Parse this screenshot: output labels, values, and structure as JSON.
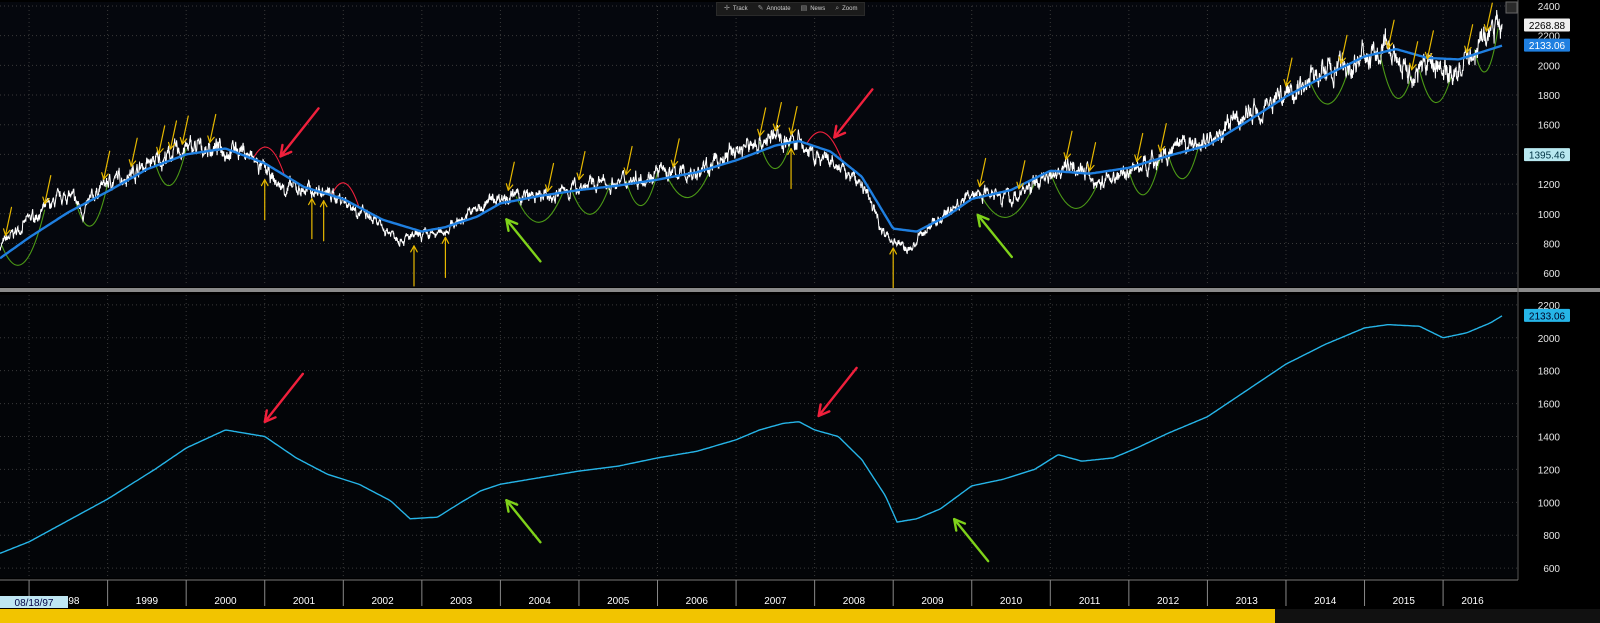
{
  "toolbar": {
    "items": [
      {
        "label": "Track",
        "icon": "crosshair-icon"
      },
      {
        "label": "Annotate",
        "icon": "pencil-icon"
      },
      {
        "label": "News",
        "icon": "news-icon"
      },
      {
        "label": "Zoom",
        "icon": "zoom-icon"
      }
    ]
  },
  "colors": {
    "background": "#000000",
    "price": "#ffffff",
    "ma_top": "#1f7fe0",
    "ma_bottom": "#26b5e8",
    "yellow_arrow": "#e6b800",
    "green_arc": "#4c9a16",
    "red_arrow": "#f0203c",
    "green_arrow": "#7fd21a",
    "divider": "#8a8a8a",
    "time_bar": "#f2c400"
  },
  "chart_data": [
    {
      "type": "line",
      "panel": "top",
      "ylim": [
        520,
        2400
      ],
      "yticks": [
        600,
        800,
        1000,
        1200,
        1400,
        1600,
        1800,
        2000,
        2200,
        2400
      ],
      "series": [
        {
          "values_ref": "price",
          "x": [
            1997.63,
            1998.0,
            1998.5,
            1998.7,
            1998.9,
            1999.5,
            2000.0,
            2000.7,
            2001.2,
            2001.7,
            2002.0,
            2002.5,
            2002.8,
            2003.2,
            2003.6,
            2004.0,
            2004.6,
            2005.0,
            2005.5,
            2006.0,
            2006.5,
            2007.0,
            2007.5,
            2007.8,
            2008.0,
            2008.3,
            2008.6,
            2008.9,
            2009.2,
            2009.5,
            2009.8,
            2010.0,
            2010.3,
            2010.5,
            2011.0,
            2011.3,
            2011.6,
            2011.8,
            2012.0,
            2012.5,
            2013.0,
            2013.5,
            2014.0,
            2014.5,
            2014.8,
            2015.0,
            2015.4,
            2015.6,
            2015.9,
            2016.1,
            2016.5,
            2016.75
          ],
          "values": [
            780,
            960,
            1130,
            1010,
            1180,
            1330,
            1440,
            1440,
            1180,
            1150,
            1100,
            900,
            830,
            860,
            1000,
            1120,
            1110,
            1190,
            1210,
            1280,
            1270,
            1430,
            1520,
            1480,
            1380,
            1310,
            1200,
            860,
            750,
            940,
            1050,
            1130,
            1170,
            1090,
            1280,
            1350,
            1200,
            1250,
            1290,
            1400,
            1500,
            1660,
            1820,
            1960,
            1980,
            2060,
            2080,
            1930,
            2040,
            1920,
            2170,
            2270
          ]
        },
        {
          "values_ref": "ma",
          "x": [
            1997.63,
            1998.0,
            1998.5,
            1999.0,
            1999.5,
            2000.0,
            2000.5,
            2001.0,
            2001.5,
            2002.0,
            2002.5,
            2003.0,
            2003.3,
            2003.7,
            2004.0,
            2004.5,
            2005.0,
            2005.5,
            2006.0,
            2006.5,
            2007.0,
            2007.5,
            2007.8,
            2008.2,
            2008.6,
            2009.0,
            2009.3,
            2009.7,
            2010.0,
            2010.5,
            2011.0,
            2011.5,
            2012.0,
            2012.5,
            2013.0,
            2013.5,
            2014.0,
            2014.5,
            2015.0,
            2015.4,
            2015.8,
            2016.2,
            2016.75
          ],
          "values": [
            700,
            840,
            1010,
            1150,
            1300,
            1400,
            1440,
            1340,
            1180,
            1100,
            960,
            880,
            910,
            980,
            1070,
            1120,
            1160,
            1190,
            1230,
            1280,
            1360,
            1460,
            1490,
            1420,
            1250,
            900,
            880,
            990,
            1100,
            1160,
            1290,
            1270,
            1310,
            1390,
            1460,
            1620,
            1790,
            1930,
            2060,
            2110,
            2050,
            2040,
            2133.06
          ]
        }
      ],
      "labels": [
        "2268.88",
        "2133.06",
        "1395.46"
      ]
    },
    {
      "type": "line",
      "panel": "bottom",
      "ylim": [
        540,
        2260
      ],
      "yticks": [
        600,
        800,
        1000,
        1200,
        1400,
        1600,
        1800,
        2000,
        2200
      ],
      "series": [
        {
          "values_ref": "ma",
          "x": [
            1997.63,
            1998.0,
            1998.5,
            1999.0,
            1999.3,
            1999.6,
            2000.0,
            2000.5,
            2001.0,
            2001.4,
            2001.8,
            2002.2,
            2002.6,
            2002.85,
            2003.2,
            2003.5,
            2003.75,
            2004.0,
            2004.5,
            2005.0,
            2005.5,
            2006.0,
            2006.5,
            2007.0,
            2007.3,
            2007.6,
            2007.8,
            2008.0,
            2008.3,
            2008.6,
            2008.9,
            2009.05,
            2009.3,
            2009.6,
            2010.0,
            2010.4,
            2010.8,
            2011.1,
            2011.4,
            2011.8,
            2012.1,
            2012.5,
            2013.0,
            2013.5,
            2014.0,
            2014.5,
            2015.0,
            2015.3,
            2015.7,
            2016.0,
            2016.3,
            2016.6,
            2016.75
          ],
          "values": [
            690,
            760,
            890,
            1020,
            1110,
            1200,
            1330,
            1440,
            1400,
            1270,
            1170,
            1110,
            1010,
            900,
            910,
            1000,
            1070,
            1110,
            1150,
            1190,
            1220,
            1270,
            1310,
            1380,
            1440,
            1480,
            1490,
            1440,
            1400,
            1260,
            1040,
            880,
            900,
            960,
            1100,
            1140,
            1200,
            1290,
            1250,
            1270,
            1330,
            1420,
            1520,
            1680,
            1840,
            1960,
            2060,
            2080,
            2070,
            2000,
            2030,
            2090,
            2133.06
          ]
        }
      ],
      "labels": [
        "2133.06"
      ]
    }
  ],
  "xaxis": {
    "ticks": [
      "1998",
      "1999",
      "2000",
      "2001",
      "2002",
      "2003",
      "2004",
      "2005",
      "2006",
      "2007",
      "2008",
      "2009",
      "2010",
      "2011",
      "2012",
      "2013",
      "2014",
      "2015",
      "2016"
    ],
    "start_label": "08/18/97"
  }
}
